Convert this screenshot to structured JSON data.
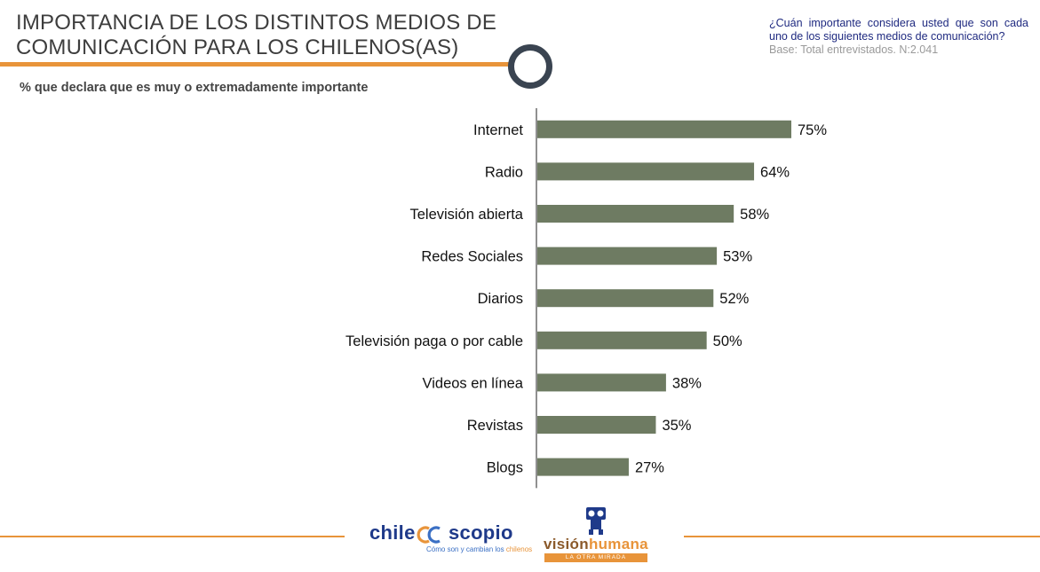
{
  "header": {
    "title_line1": "IMPORTANCIA DE LOS DISTINTOS MEDIOS DE",
    "title_line2": "COMUNICACIÓN PARA LOS CHILENOS(AS)",
    "question": "¿Cuán importante considera usted que son cada uno de los siguientes medios de comunicación?",
    "base": "Base: Total entrevistados. N:2.041",
    "subtitle": "% que declara que es muy o extremadamente importante"
  },
  "colors": {
    "bar": "#6e7b62",
    "accent_orange": "#e8943a",
    "title_text": "#3d3d3d",
    "question_text": "#1f2a80",
    "ring": "#3a4451",
    "chile_blue": "#1f3a8a",
    "vision_brown": "#8b5a2b"
  },
  "chart_data": {
    "type": "bar",
    "orientation": "horizontal",
    "title": "IMPORTANCIA DE LOS DISTINTOS MEDIOS DE COMUNICACIÓN PARA LOS CHILENOS(AS)",
    "subtitle": "% que declara que es muy o extremadamente importante",
    "categories": [
      "Internet",
      "Radio",
      "Televisión abierta",
      "Redes Sociales",
      "Diarios",
      "Televisión paga o por cable",
      "Videos en línea",
      "Revistas",
      "Blogs"
    ],
    "values": [
      75,
      64,
      58,
      53,
      52,
      50,
      38,
      35,
      27
    ],
    "value_labels": [
      "75%",
      "64%",
      "58%",
      "53%",
      "52%",
      "50%",
      "38%",
      "35%",
      "27%"
    ],
    "xlim": [
      0,
      100
    ],
    "unit": "%",
    "grid": false,
    "legend": "none"
  },
  "footer": {
    "chile_left": "chile",
    "chile_right": "scopio",
    "chile_tagline_a": "Cómo son y cambian los ",
    "chile_tagline_b": "chilenos",
    "vision_a": "visión",
    "vision_b": "humana",
    "vision_tagline": "LA OTRA MIRADA"
  }
}
